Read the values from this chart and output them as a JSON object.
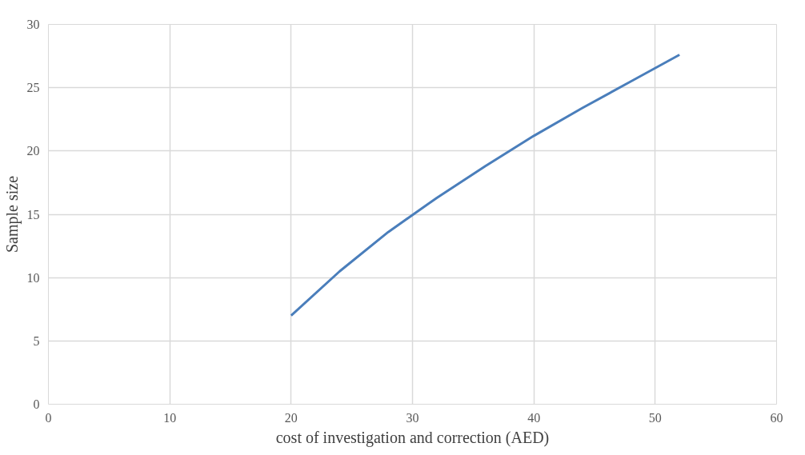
{
  "chart_data": {
    "type": "line",
    "xlabel": "cost of investigation and correction (AED)",
    "ylabel": "Sample size",
    "x": [
      20,
      24,
      28,
      32,
      36,
      40,
      44,
      48,
      52
    ],
    "series": [
      {
        "color": "#4a7ebb",
        "values": [
          7.0,
          10.5,
          13.6,
          16.3,
          18.8,
          21.2,
          23.4,
          25.5,
          27.6
        ]
      }
    ],
    "xlim": [
      0,
      60
    ],
    "xticks": [
      0,
      10,
      20,
      30,
      40,
      50,
      60
    ],
    "ylim": [
      0,
      30
    ],
    "yticks": [
      0,
      5,
      10,
      15,
      20,
      25,
      30
    ],
    "grid": true,
    "line_style": "solid",
    "marker": "none"
  }
}
